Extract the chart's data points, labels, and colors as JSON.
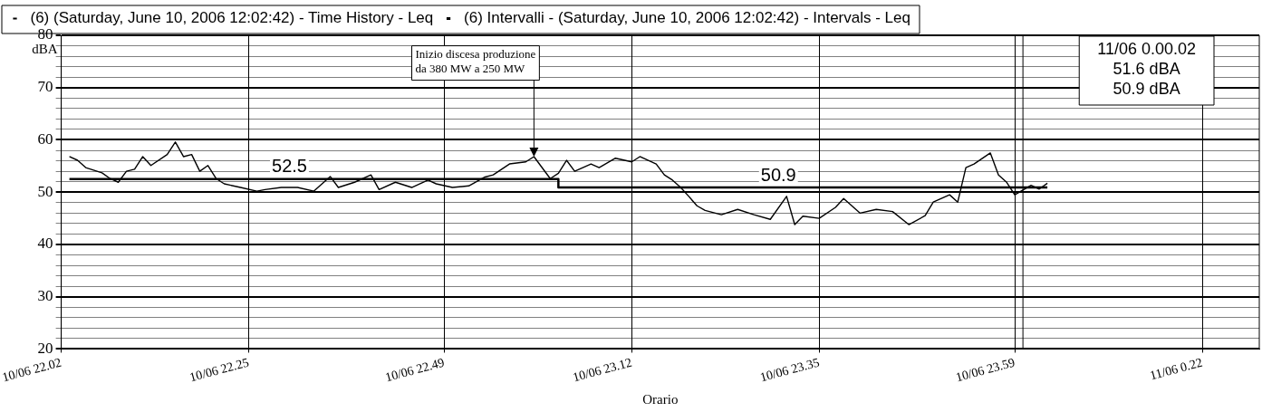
{
  "chart_data": {
    "type": "line",
    "xlabel": "Orario",
    "ylabel": "dBA",
    "xlim": [
      "2006-06-10T22:02",
      "2006-06-11T00:29"
    ],
    "ylim": [
      20,
      80
    ],
    "xticks": [
      {
        "value": "2006-06-10T22:02",
        "label": "10/06 22.02"
      },
      {
        "value": "2006-06-10T22:25",
        "label": "10/06 22.25"
      },
      {
        "value": "2006-06-10T22:49",
        "label": "10/06 22.49"
      },
      {
        "value": "2006-06-10T23:12",
        "label": "10/06 23.12"
      },
      {
        "value": "2006-06-10T23:35",
        "label": "10/06 23.35"
      },
      {
        "value": "2006-06-10T23:59",
        "label": "10/06 23.59"
      },
      {
        "value": "2006-06-11T00:22",
        "label": "11/06 0.22"
      }
    ],
    "yticks": [
      20,
      {
        "value": 22,
        "label": null
      },
      {
        "value": 24,
        "label": null
      },
      {
        "value": 26,
        "label": null
      },
      {
        "value": 28,
        "label": null
      },
      30,
      {
        "value": 32,
        "label": null
      },
      {
        "value": 34,
        "label": null
      },
      {
        "value": 36,
        "label": null
      },
      {
        "value": 38,
        "label": null
      },
      40,
      {
        "value": 42,
        "label": null
      },
      {
        "value": 44,
        "label": null
      },
      {
        "value": 46,
        "label": null
      },
      {
        "value": 48,
        "label": null
      },
      50,
      {
        "value": 52,
        "label": null
      },
      {
        "value": 54,
        "label": null
      },
      {
        "value": 56,
        "label": null
      },
      {
        "value": 58,
        "label": null
      },
      60,
      {
        "value": 62,
        "label": null
      },
      {
        "value": 64,
        "label": null
      },
      {
        "value": 66,
        "label": null
      },
      {
        "value": 68,
        "label": null
      },
      70,
      {
        "value": 72,
        "label": null
      },
      {
        "value": 74,
        "label": null
      },
      {
        "value": 76,
        "label": null
      },
      {
        "value": 78,
        "label": null
      },
      80
    ],
    "grid": true,
    "legend": "top",
    "marker": "none",
    "series": [
      {
        "name": "(6) (Saturday, June 10, 2006 12:02:42) - Time History - Leq",
        "color": "#000000",
        "type": "line",
        "x": [
          "2006-06-10T22:03",
          "2006-06-10T22:04",
          "2006-06-10T22:05",
          "2006-06-10T22:07",
          "2006-06-10T22:08",
          "2006-06-10T22:09",
          "2006-06-10T22:10",
          "2006-06-10T22:11",
          "2006-06-10T22:12",
          "2006-06-10T22:13",
          "2006-06-10T22:15",
          "2006-06-10T22:16",
          "2006-06-10T22:17",
          "2006-06-10T22:18",
          "2006-06-10T22:19",
          "2006-06-10T22:20",
          "2006-06-10T22:21",
          "2006-06-10T22:22",
          "2006-06-10T22:24",
          "2006-06-10T22:26",
          "2006-06-10T22:27",
          "2006-06-10T22:29",
          "2006-06-10T22:31",
          "2006-06-10T22:33",
          "2006-06-10T22:35",
          "2006-06-10T22:36",
          "2006-06-10T22:38",
          "2006-06-10T22:40",
          "2006-06-10T22:41",
          "2006-06-10T22:43",
          "2006-06-10T22:45",
          "2006-06-10T22:47",
          "2006-06-10T22:48",
          "2006-06-10T22:50",
          "2006-06-10T22:52",
          "2006-06-10T22:54",
          "2006-06-10T22:55",
          "2006-06-10T22:57",
          "2006-06-10T22:59",
          "2006-06-10T23:00",
          "2006-06-10T23:02",
          "2006-06-10T23:03",
          "2006-06-10T23:04",
          "2006-06-10T23:05",
          "2006-06-10T23:07",
          "2006-06-10T23:08",
          "2006-06-10T23:10",
          "2006-06-10T23:12",
          "2006-06-10T23:13",
          "2006-06-10T23:15",
          "2006-06-10T23:16",
          "2006-06-10T23:17",
          "2006-06-10T23:18",
          "2006-06-10T23:19",
          "2006-06-10T23:20",
          "2006-06-10T23:21",
          "2006-06-10T23:23",
          "2006-06-10T23:25",
          "2006-06-10T23:27",
          "2006-06-10T23:29",
          "2006-06-10T23:31",
          "2006-06-10T23:32",
          "2006-06-10T23:33",
          "2006-06-10T23:35",
          "2006-06-10T23:37",
          "2006-06-10T23:38",
          "2006-06-10T23:39",
          "2006-06-10T23:40",
          "2006-06-10T23:42",
          "2006-06-10T23:44",
          "2006-06-10T23:46",
          "2006-06-10T23:48",
          "2006-06-10T23:49",
          "2006-06-10T23:51",
          "2006-06-10T23:52",
          "2006-06-10T23:53",
          "2006-06-10T23:54",
          "2006-06-10T23:56",
          "2006-06-10T23:57",
          "2006-06-10T23:58",
          "2006-06-10T23:59",
          "2006-06-11T00:01",
          "2006-06-11T00:02",
          "2006-06-11T00:03"
        ],
        "values": [
          56.8,
          56.1,
          54.7,
          53.7,
          52.6,
          51.9,
          54.0,
          54.4,
          56.8,
          55.1,
          57.2,
          59.6,
          56.8,
          57.2,
          54.0,
          55.1,
          52.6,
          51.6,
          50.9,
          50.2,
          50.5,
          50.9,
          50.9,
          50.2,
          53.0,
          50.9,
          51.9,
          53.3,
          50.5,
          51.9,
          50.9,
          52.3,
          51.6,
          50.9,
          51.2,
          52.9,
          53.3,
          55.4,
          55.8,
          56.8,
          52.6,
          53.6,
          56.1,
          54.0,
          55.4,
          54.7,
          56.5,
          55.8,
          56.8,
          55.4,
          53.3,
          52.3,
          50.9,
          49.2,
          47.4,
          46.5,
          45.7,
          46.7,
          45.7,
          44.8,
          49.2,
          43.8,
          45.4,
          45.0,
          47.1,
          48.8,
          47.4,
          46.0,
          46.7,
          46.3,
          43.8,
          45.5,
          48.1,
          49.5,
          48.1,
          54.7,
          55.4,
          57.5,
          53.3,
          51.9,
          49.5,
          51.3,
          50.6,
          51.7
        ]
      },
      {
        "name": "(6) Intervalli - (Saturday, June 10, 2006 12:02:42) - Intervals - Leq",
        "color": "#000000",
        "type": "step",
        "x": [
          "2006-06-10T22:03",
          "2006-06-10T23:03",
          "2006-06-10T23:03",
          "2006-06-11T00:03"
        ],
        "values": [
          52.5,
          52.5,
          50.9,
          50.9
        ]
      }
    ],
    "ref_lines": [
      {
        "axis": "x",
        "value": "2006-06-11T00:00",
        "color": "#000000"
      }
    ],
    "annotations": [
      {
        "text": "52.5",
        "x": "2006-06-10T22:30",
        "y": 52.5
      },
      {
        "text": "50.9",
        "x": "2006-06-10T23:30",
        "y": 50.9
      },
      {
        "text": "Inizio discesa produzione\nda 380 MW a 250 MW",
        "x": "2006-06-10T23:00",
        "y": 56.8
      },
      "11/06 0.00.02",
      "51.6 dBA",
      "50.9 dBA"
    ]
  }
}
